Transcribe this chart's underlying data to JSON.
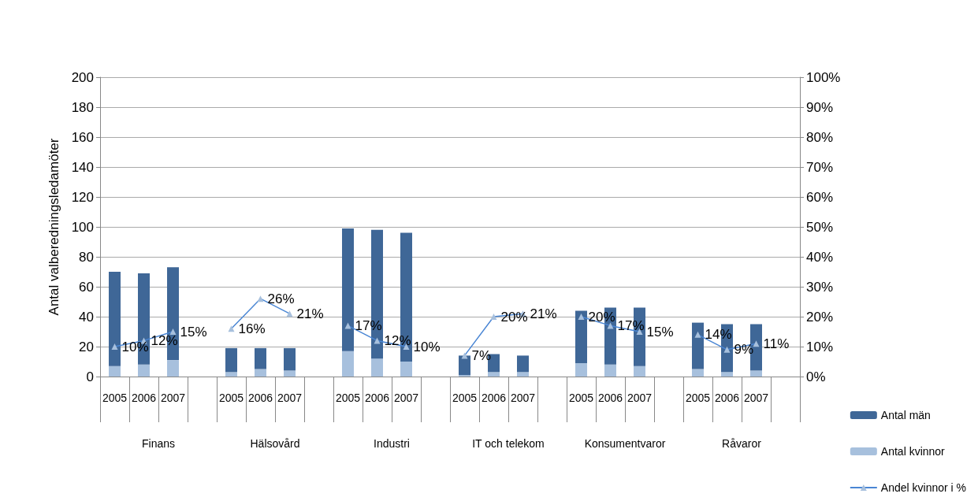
{
  "chart_data": {
    "type": "bar",
    "ylabel": "Antal valberedningsledamöter",
    "categories": [
      "2005",
      "2006",
      "2007",
      null,
      "2005",
      "2006",
      "2007",
      null,
      "2005",
      "2006",
      "2007",
      null,
      "2005",
      "2006",
      "2007",
      null,
      "2005",
      "2006",
      "2007",
      null,
      "2005",
      "2006",
      "2007",
      null
    ],
    "annotations": [
      "Finans",
      "Hälsovård",
      "Industri",
      "IT och telekom",
      "Konsumentvaror",
      "Råvaror"
    ],
    "stacked": true,
    "series": [
      {
        "name": "Antal kvinnor",
        "color": "#a7c0dd",
        "values": [
          7,
          8,
          11,
          null,
          3,
          5,
          4,
          null,
          17,
          12,
          10,
          null,
          1,
          3,
          3,
          null,
          9,
          8,
          7,
          null,
          5,
          3,
          4,
          null
        ]
      },
      {
        "name": "Antal män",
        "color": "#3f6797",
        "values": [
          63,
          61,
          62,
          null,
          16,
          14,
          15,
          null,
          82,
          86,
          86,
          null,
          13,
          12,
          11,
          null,
          35,
          38,
          39,
          null,
          31,
          32,
          31,
          null
        ]
      },
      {
        "name": "Andel kvinnor i %",
        "type": "line",
        "axis": "y2",
        "color": "#4a86d4",
        "marker": "triangle",
        "values": [
          10,
          12,
          15,
          null,
          16,
          26,
          21,
          null,
          17,
          12,
          10,
          null,
          7,
          20,
          21,
          null,
          20,
          17,
          15,
          null,
          14,
          9,
          11,
          null
        ],
        "value_labels": [
          "10%",
          "12%",
          "15%",
          null,
          "16%",
          "26%",
          "21%",
          null,
          "17%",
          "12%",
          "10%",
          null,
          "7%",
          "20%",
          "21%",
          null,
          "20%",
          "17%",
          "15%",
          null,
          "14%",
          "9%",
          "11%",
          null
        ]
      }
    ],
    "ylim": [
      0,
      200
    ],
    "yticks": [
      0,
      20,
      40,
      60,
      80,
      100,
      120,
      140,
      160,
      180,
      200
    ],
    "y2lim": [
      0,
      100
    ],
    "y2ticks": [
      {
        "value": 0,
        "label": "0%"
      },
      {
        "value": 10,
        "label": "10%"
      },
      {
        "value": 20,
        "label": "20%"
      },
      {
        "value": 30,
        "label": "30%"
      },
      {
        "value": 40,
        "label": "40%"
      },
      {
        "value": 50,
        "label": "50%"
      },
      {
        "value": 60,
        "label": "60%"
      },
      {
        "value": 70,
        "label": "70%"
      },
      {
        "value": 80,
        "label": "80%"
      },
      {
        "value": 90,
        "label": "90%"
      },
      {
        "value": 100,
        "label": "100%"
      }
    ],
    "grid": "y",
    "legend": "bottom right"
  }
}
